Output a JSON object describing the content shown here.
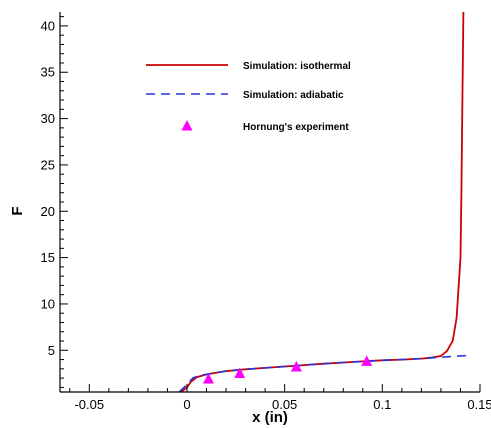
{
  "chart_data": {
    "type": "line",
    "xlabel": "x (in)",
    "ylabel": "F",
    "xlim": [
      -0.065,
      0.15
    ],
    "ylim": [
      0.5,
      41.5
    ],
    "xticks": [
      -0.05,
      0,
      0.05,
      0.1,
      0.15
    ],
    "xtick_labels": [
      "-0.05",
      "0",
      "0.05",
      "0.1",
      "0.15"
    ],
    "yticks": [
      5,
      10,
      15,
      20,
      25,
      30,
      35,
      40
    ],
    "ytick_labels": [
      "5",
      "10",
      "15",
      "20",
      "25",
      "30",
      "35",
      "40"
    ],
    "grid": false,
    "legend_position": "top-center",
    "series": [
      {
        "name": "Simulation: isothermal",
        "type": "line",
        "style": "solid",
        "color": "#cc0000",
        "x": [
          -0.003,
          0.0,
          0.002,
          0.005,
          0.01,
          0.02,
          0.03,
          0.04,
          0.05,
          0.06,
          0.07,
          0.08,
          0.09,
          0.1,
          0.11,
          0.12,
          0.125,
          0.13,
          0.133,
          0.136,
          0.138,
          0.14,
          0.1405,
          0.141,
          0.1415
        ],
        "y": [
          0.5,
          1.0,
          1.6,
          2.1,
          2.4,
          2.75,
          2.95,
          3.1,
          3.25,
          3.4,
          3.55,
          3.68,
          3.8,
          3.92,
          4.0,
          4.1,
          4.2,
          4.4,
          4.9,
          6.0,
          8.5,
          15.0,
          22.0,
          32.0,
          41.5
        ]
      },
      {
        "name": "Simulation: adiabatic",
        "type": "line",
        "style": "dashed",
        "color": "#2233dd",
        "x": [
          -0.004,
          0.0,
          0.003,
          0.006,
          0.01,
          0.02,
          0.03,
          0.04,
          0.05,
          0.06,
          0.07,
          0.08,
          0.09,
          0.1,
          0.11,
          0.12,
          0.13,
          0.14,
          0.145
        ],
        "y": [
          0.5,
          1.3,
          2.0,
          2.25,
          2.4,
          2.75,
          2.95,
          3.1,
          3.25,
          3.4,
          3.55,
          3.68,
          3.8,
          3.92,
          4.0,
          4.1,
          4.25,
          4.4,
          4.45
        ]
      },
      {
        "name": "Hornung's experiment",
        "type": "scatter",
        "marker": "triangle",
        "color": "#ff00ff",
        "x": [
          0.011,
          0.027,
          0.056,
          0.092
        ],
        "y": [
          1.9,
          2.5,
          3.2,
          3.8
        ]
      }
    ]
  }
}
